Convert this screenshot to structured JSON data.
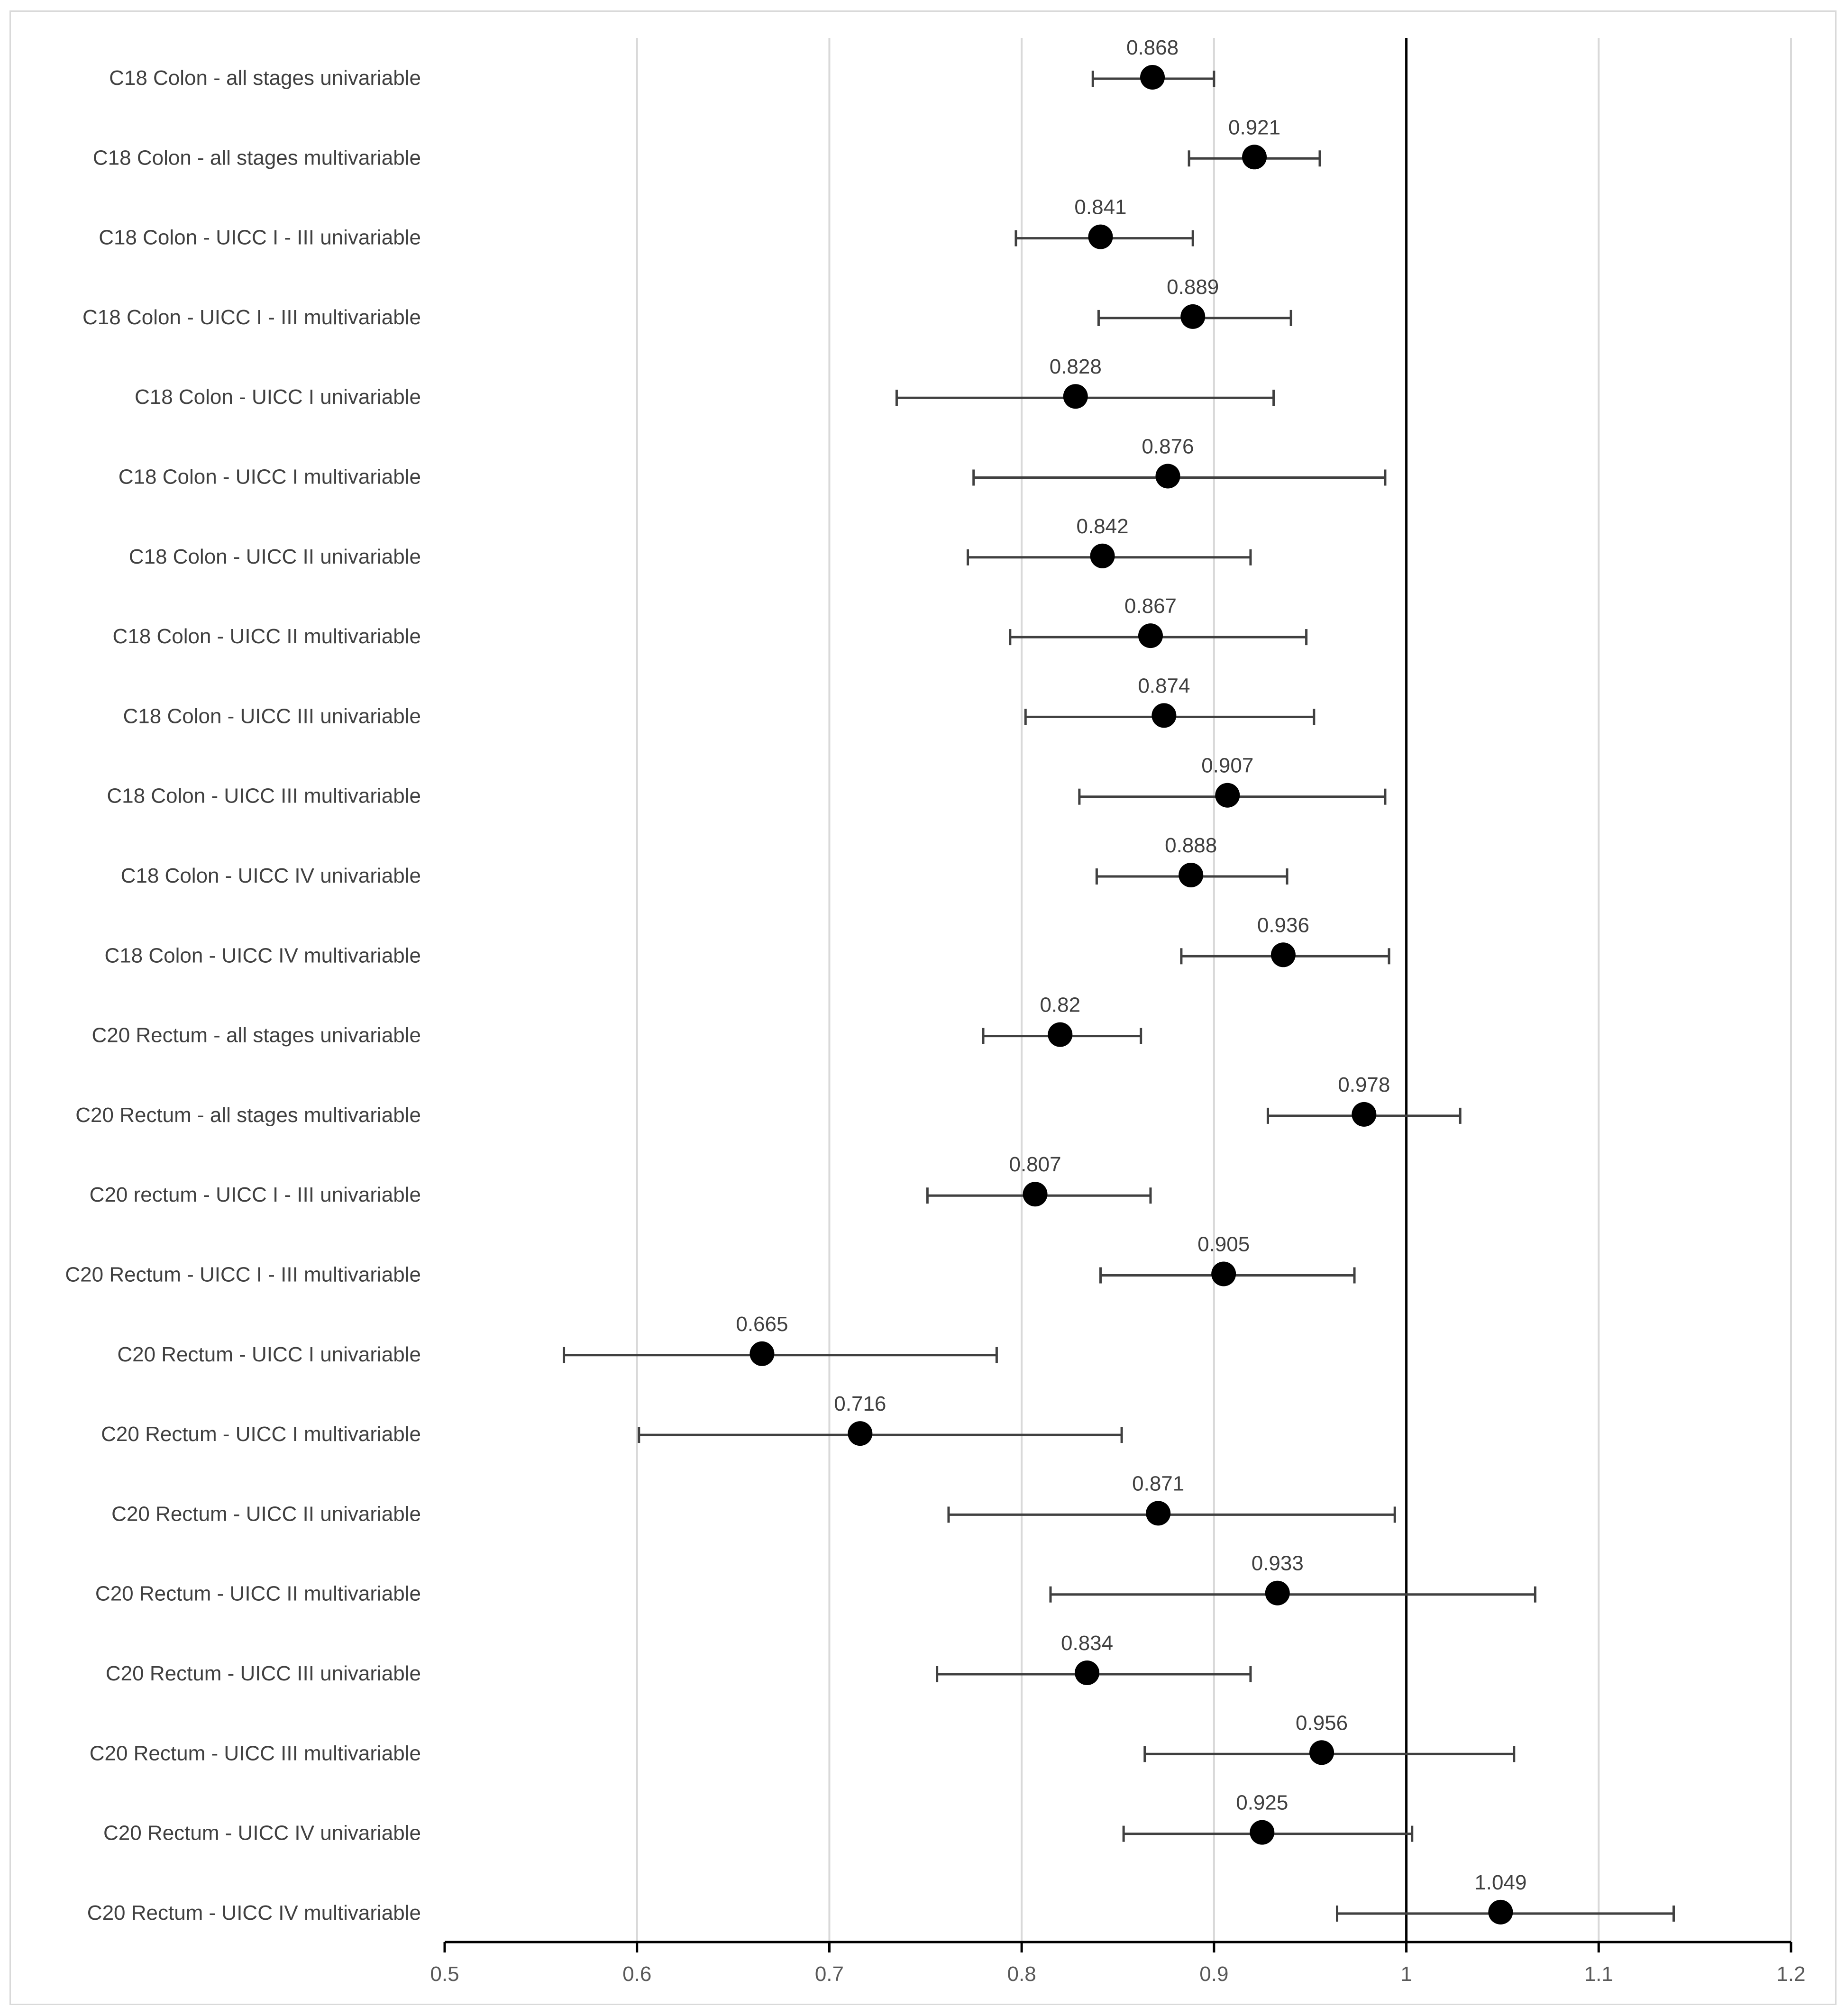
{
  "chart_data": {
    "type": "scatter",
    "subtype": "forest-plot",
    "title": "",
    "xlabel": "",
    "ylabel": "",
    "xlim": [
      0.5,
      1.2
    ],
    "xticks": [
      0.5,
      0.6,
      0.7,
      0.8,
      0.9,
      1.0,
      1.1,
      1.2
    ],
    "xtick_labels": [
      "0.5",
      "0.6",
      "0.7",
      "0.8",
      "0.9",
      "1",
      "1.1",
      "1.2"
    ],
    "reference_line": 1.0,
    "grid": true,
    "colors": {
      "point": "#000000",
      "errorbar": "#404040",
      "grid": "#d9d9d9",
      "text": "#404040"
    },
    "rows": [
      {
        "label": "C18 Colon - all stages univariable",
        "value": 0.868,
        "value_label": "0.868",
        "lower": 0.837,
        "upper": 0.9
      },
      {
        "label": "C18 Colon - all stages multivariable",
        "value": 0.921,
        "value_label": "0.921",
        "lower": 0.887,
        "upper": 0.955
      },
      {
        "label": "C18 Colon - UICC I - III univariable",
        "value": 0.841,
        "value_label": "0.841",
        "lower": 0.797,
        "upper": 0.889
      },
      {
        "label": "C18 Colon - UICC I - III multivariable",
        "value": 0.889,
        "value_label": "0.889",
        "lower": 0.84,
        "upper": 0.94
      },
      {
        "label": "C18 Colon - UICC I univariable",
        "value": 0.828,
        "value_label": "0.828",
        "lower": 0.735,
        "upper": 0.931
      },
      {
        "label": "C18 Colon - UICC I multivariable",
        "value": 0.876,
        "value_label": "0.876",
        "lower": 0.775,
        "upper": 0.989
      },
      {
        "label": "C18 Colon - UICC II univariable",
        "value": 0.842,
        "value_label": "0.842",
        "lower": 0.772,
        "upper": 0.919
      },
      {
        "label": "C18 Colon - UICC II multivariable",
        "value": 0.867,
        "value_label": "0.867",
        "lower": 0.794,
        "upper": 0.948
      },
      {
        "label": "C18 Colon - UICC III univariable",
        "value": 0.874,
        "value_label": "0.874",
        "lower": 0.802,
        "upper": 0.952
      },
      {
        "label": "C18 Colon - UICC III multivariable",
        "value": 0.907,
        "value_label": "0.907",
        "lower": 0.83,
        "upper": 0.989
      },
      {
        "label": "C18 Colon - UICC IV univariable",
        "value": 0.888,
        "value_label": "0.888",
        "lower": 0.839,
        "upper": 0.938
      },
      {
        "label": "C18 Colon - UICC IV multivariable",
        "value": 0.936,
        "value_label": "0.936",
        "lower": 0.883,
        "upper": 0.991
      },
      {
        "label": "C20 Rectum - all stages univariable",
        "value": 0.82,
        "value_label": "0.82",
        "lower": 0.78,
        "upper": 0.862
      },
      {
        "label": "C20 Rectum - all stages multivariable",
        "value": 0.978,
        "value_label": "0.978",
        "lower": 0.928,
        "upper": 1.028
      },
      {
        "label": "C20 rectum - UICC I - III univariable",
        "value": 0.807,
        "value_label": "0.807",
        "lower": 0.751,
        "upper": 0.867
      },
      {
        "label": "C20 Rectum - UICC I - III multivariable",
        "value": 0.905,
        "value_label": "0.905",
        "lower": 0.841,
        "upper": 0.973
      },
      {
        "label": "C20 Rectum - UICC I univariable",
        "value": 0.665,
        "value_label": "0.665",
        "lower": 0.562,
        "upper": 0.787
      },
      {
        "label": "C20 Rectum - UICC I multivariable",
        "value": 0.716,
        "value_label": "0.716",
        "lower": 0.601,
        "upper": 0.852
      },
      {
        "label": "C20 Rectum - UICC II univariable",
        "value": 0.871,
        "value_label": "0.871",
        "lower": 0.762,
        "upper": 0.994
      },
      {
        "label": "C20 Rectum - UICC II multivariable",
        "value": 0.933,
        "value_label": "0.933",
        "lower": 0.815,
        "upper": 1.067
      },
      {
        "label": "C20 Rectum - UICC III univariable",
        "value": 0.834,
        "value_label": "0.834",
        "lower": 0.756,
        "upper": 0.919
      },
      {
        "label": "C20 Rectum - UICC III multivariable",
        "value": 0.956,
        "value_label": "0.956",
        "lower": 0.864,
        "upper": 1.056
      },
      {
        "label": "C20 Rectum - UICC IV univariable",
        "value": 0.925,
        "value_label": "0.925",
        "lower": 0.853,
        "upper": 1.003
      },
      {
        "label": "C20 Rectum - UICC IV multivariable",
        "value": 1.049,
        "value_label": "1.049",
        "lower": 0.964,
        "upper": 1.139
      }
    ]
  }
}
